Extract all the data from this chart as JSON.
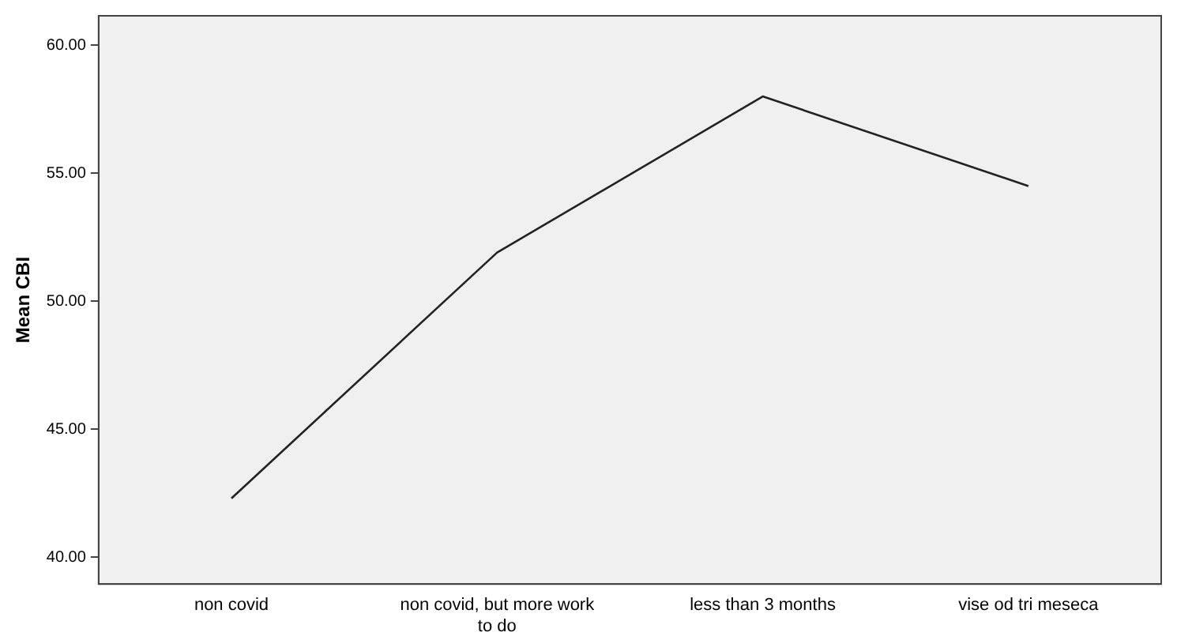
{
  "chart_data": {
    "type": "line",
    "ylabel": "Mean CBI",
    "categories": [
      "non covid",
      "non covid, but more work to do",
      "less than 3 months",
      "vise od tri meseca"
    ],
    "series": [
      {
        "color": "#222222",
        "values": [
          42.3,
          51.9,
          58.0,
          54.5
        ]
      }
    ],
    "ylim": [
      38.95,
      61.15
    ],
    "yticks": [
      {
        "value": 40,
        "label": "40.00"
      },
      {
        "value": 45,
        "label": "45.00"
      },
      {
        "value": 50,
        "label": "50.00"
      },
      {
        "value": 55,
        "label": "55.00"
      },
      {
        "value": 60,
        "label": "60.00"
      }
    ],
    "grid": false,
    "legend": false,
    "marker": "none",
    "line_style": "solid"
  }
}
